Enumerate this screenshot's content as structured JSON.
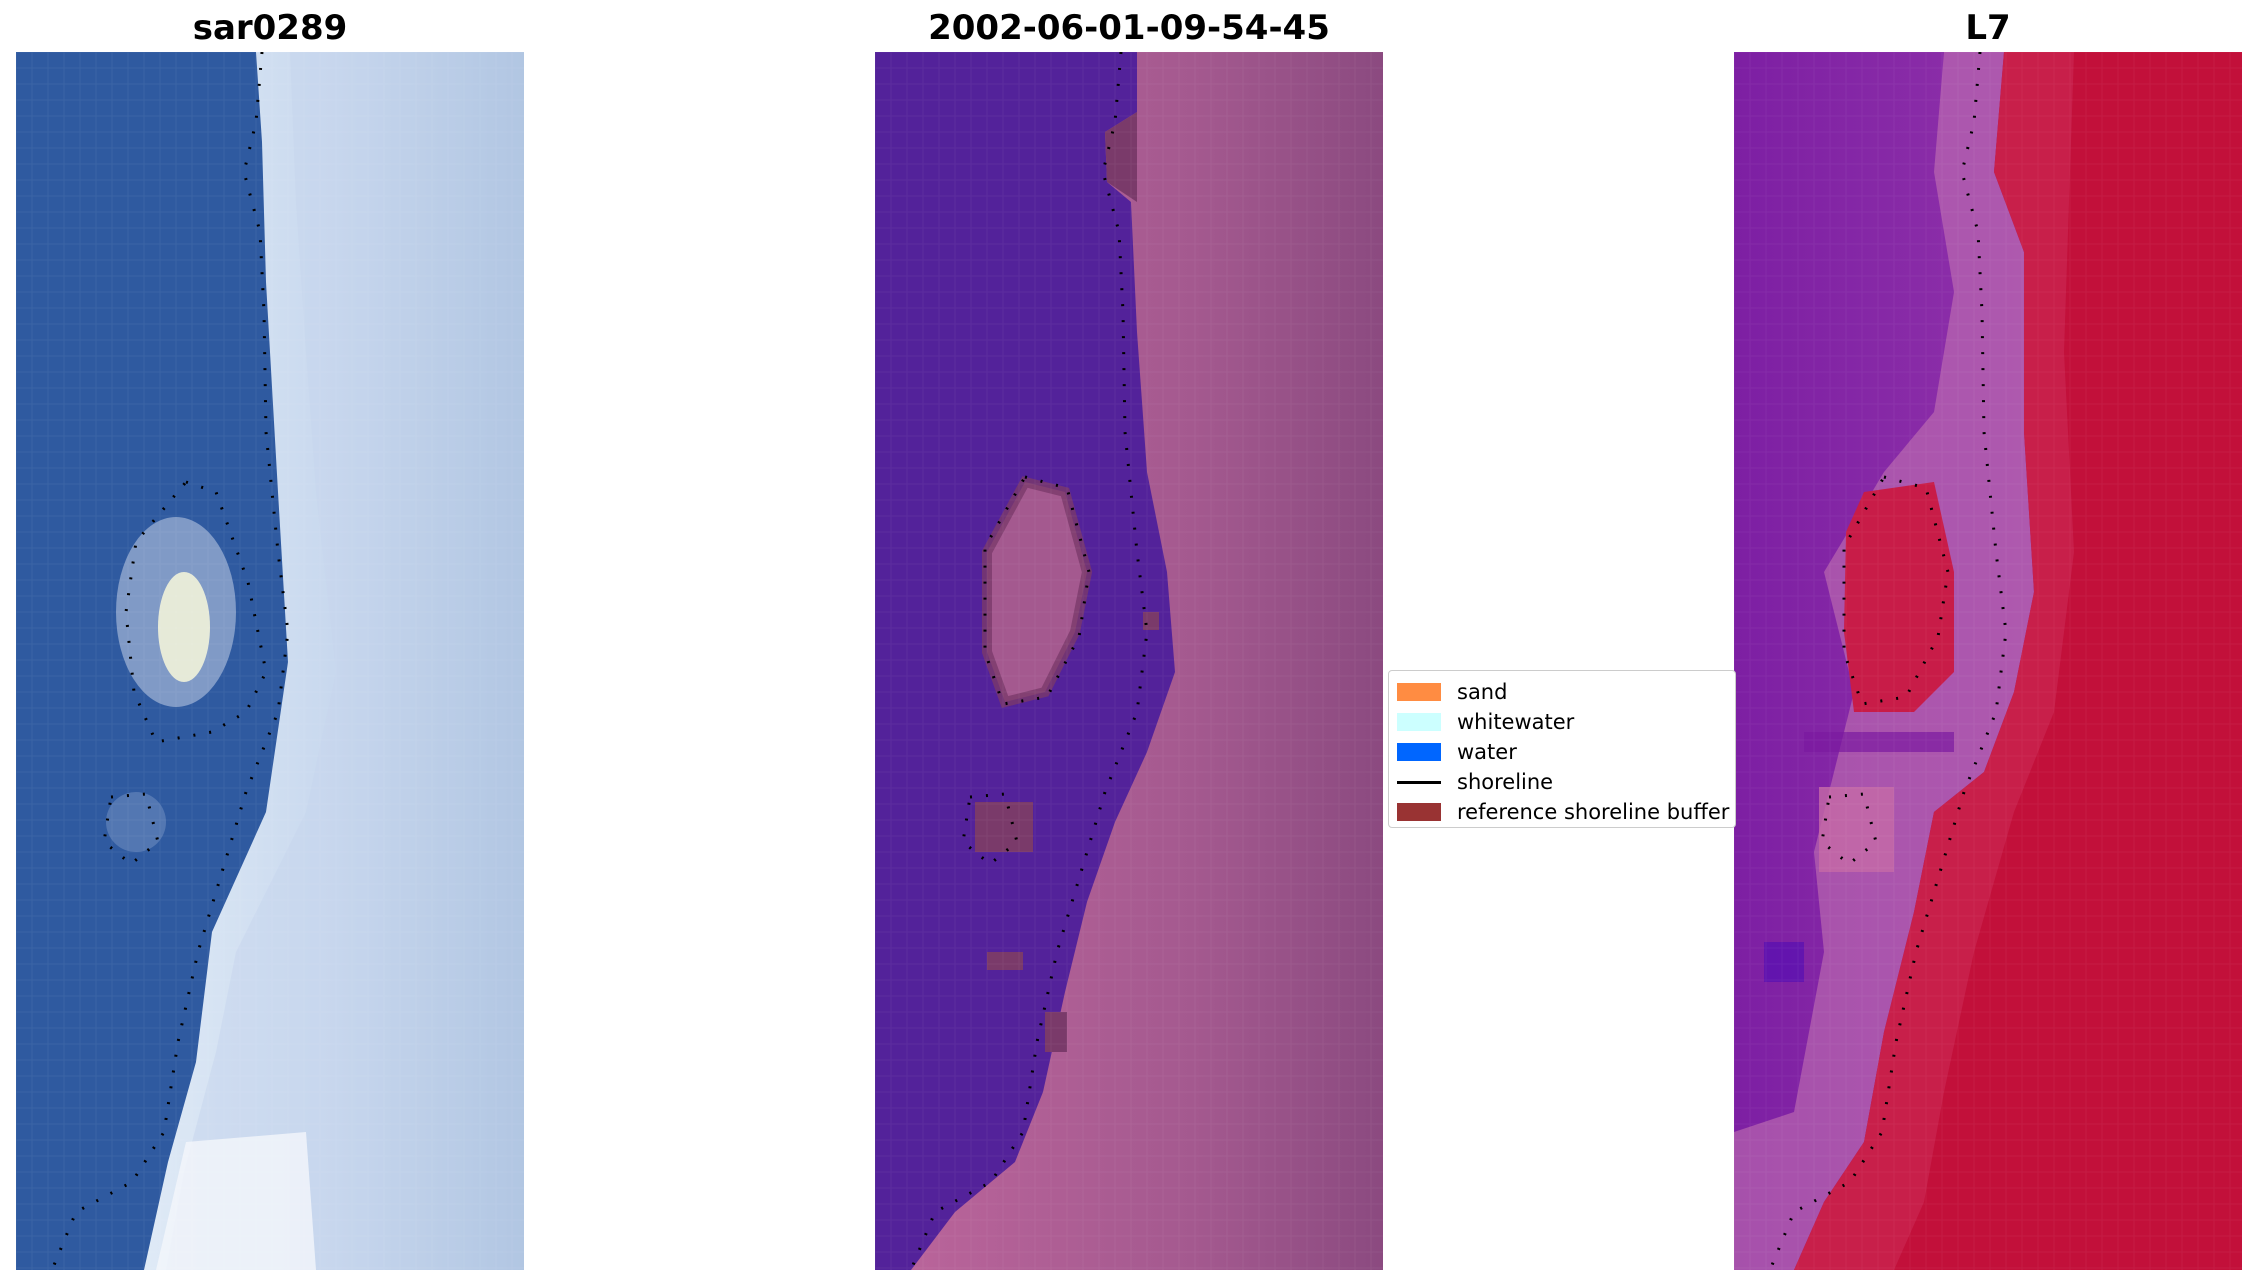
{
  "titles": {
    "rgb": "sar0289",
    "classified": "2002-06-01-09-54-45",
    "index": "L7"
  },
  "legend": {
    "items": [
      {
        "label": "sand",
        "color": "#ff8c42",
        "kind": "patch"
      },
      {
        "label": "whitewater",
        "color": "#ccffff",
        "kind": "patch"
      },
      {
        "label": "water",
        "color": "#0066ff",
        "kind": "patch"
      },
      {
        "label": "shoreline",
        "color": "#000000",
        "kind": "line"
      },
      {
        "label": "reference shoreline buffer",
        "color": "#993333",
        "kind": "patch"
      }
    ]
  },
  "colors": {
    "rgb_water": "#2f5aa0",
    "rgb_land": "#b9cfe8",
    "class_water": "#53229a",
    "class_land": "#a4598f",
    "class_buffer": "#7a3a6a",
    "index_left": "#8a2aa8",
    "index_right": "#c2103a"
  }
}
